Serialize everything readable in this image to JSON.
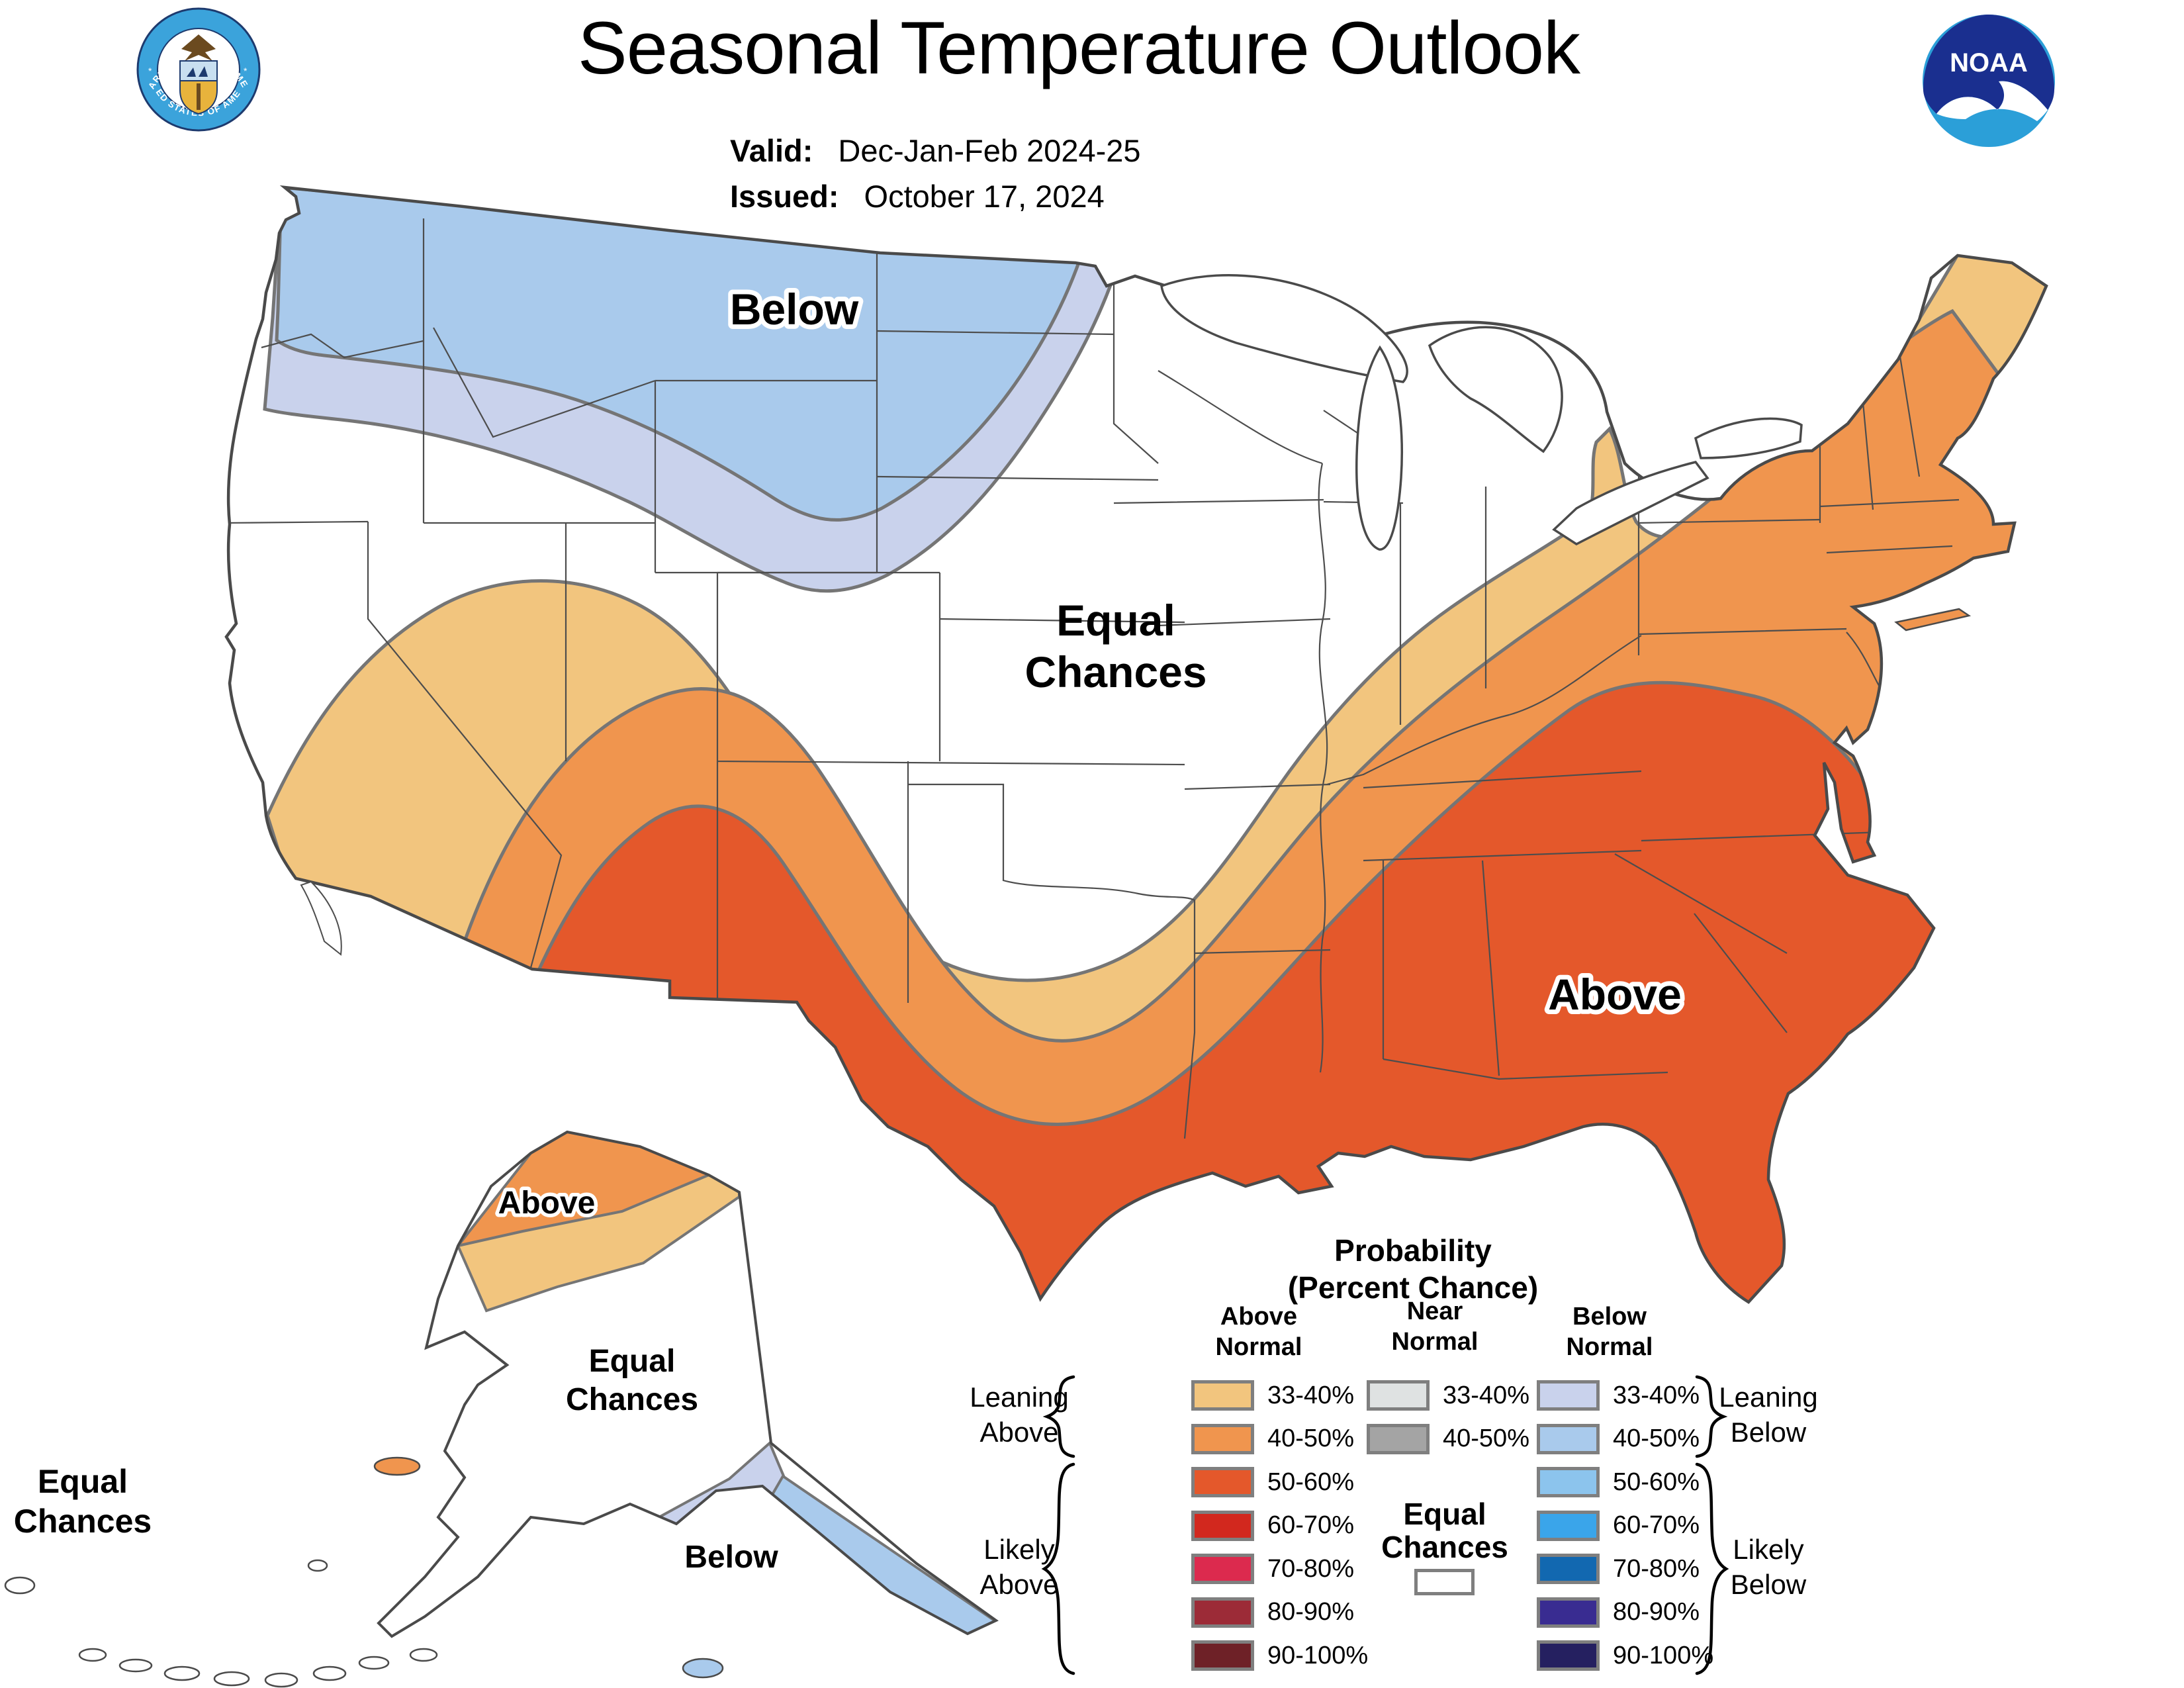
{
  "header": {
    "title": "Seasonal Temperature Outlook",
    "valid_label": "Valid:",
    "valid_value": "Dec-Jan-Feb 2024-25",
    "issued_label": "Issued:",
    "issued_value": "October 17, 2024",
    "seal_top_text": "DEPARTMENT OF COMMERCE",
    "seal_bottom_text": "UNITED STATES OF AMERICA",
    "noaa_text": "NOAA"
  },
  "map": {
    "labels": {
      "conus_below": "Below",
      "conus_equal_chances": [
        "Equal",
        "Chances"
      ],
      "conus_above": "Above",
      "alaska_above": "Above",
      "alaska_equal_chances": [
        "Equal",
        "Chances"
      ],
      "alaska_below": "Below",
      "aleutians_equal_chances": [
        "Equal",
        "Chances"
      ]
    },
    "colors": {
      "above_33_40": "#F2C57E",
      "above_40_50": "#F0954E",
      "above_50_60": "#E4582B",
      "below_33_40": "#C9D2EC",
      "below_40_50": "#A9CAEC",
      "equal_chances": "#FFFFFF",
      "coastline": "#4A4A4A",
      "state_lines": "#4D4D4D",
      "band_boundary": "#757575"
    }
  },
  "legend": {
    "title_line1": "Probability",
    "title_line2": "(Percent Chance)",
    "col_above_header": [
      "Above",
      "Normal"
    ],
    "col_near_header": [
      "Near",
      "Normal"
    ],
    "col_below_header": [
      "Below",
      "Normal"
    ],
    "above_rows": [
      {
        "range": "33-40%",
        "color": "#F2C57E"
      },
      {
        "range": "40-50%",
        "color": "#F0954E"
      },
      {
        "range": "50-60%",
        "color": "#E4582B"
      },
      {
        "range": "60-70%",
        "color": "#D2281E"
      },
      {
        "range": "70-80%",
        "color": "#DC2A4E"
      },
      {
        "range": "80-90%",
        "color": "#9C2B37"
      },
      {
        "range": "90-100%",
        "color": "#6E2127"
      }
    ],
    "near_rows": [
      {
        "range": "33-40%",
        "color": "#DFE2E2"
      },
      {
        "range": "40-50%",
        "color": "#A4A4A4"
      }
    ],
    "below_rows": [
      {
        "range": "33-40%",
        "color": "#C9D2EC"
      },
      {
        "range": "40-50%",
        "color": "#A9CAEC"
      },
      {
        "range": "50-60%",
        "color": "#8CC4ED"
      },
      {
        "range": "60-70%",
        "color": "#3AA5EA"
      },
      {
        "range": "70-80%",
        "color": "#1268B0"
      },
      {
        "range": "80-90%",
        "color": "#392C91"
      },
      {
        "range": "90-100%",
        "color": "#252060"
      }
    ],
    "equal_chances_label": [
      "Equal",
      "Chances"
    ],
    "leaning_above": [
      "Leaning",
      "Above"
    ],
    "likely_above": [
      "Likely",
      "Above"
    ],
    "leaning_below": [
      "Leaning",
      "Below"
    ],
    "likely_below": [
      "Likely",
      "Below"
    ]
  }
}
